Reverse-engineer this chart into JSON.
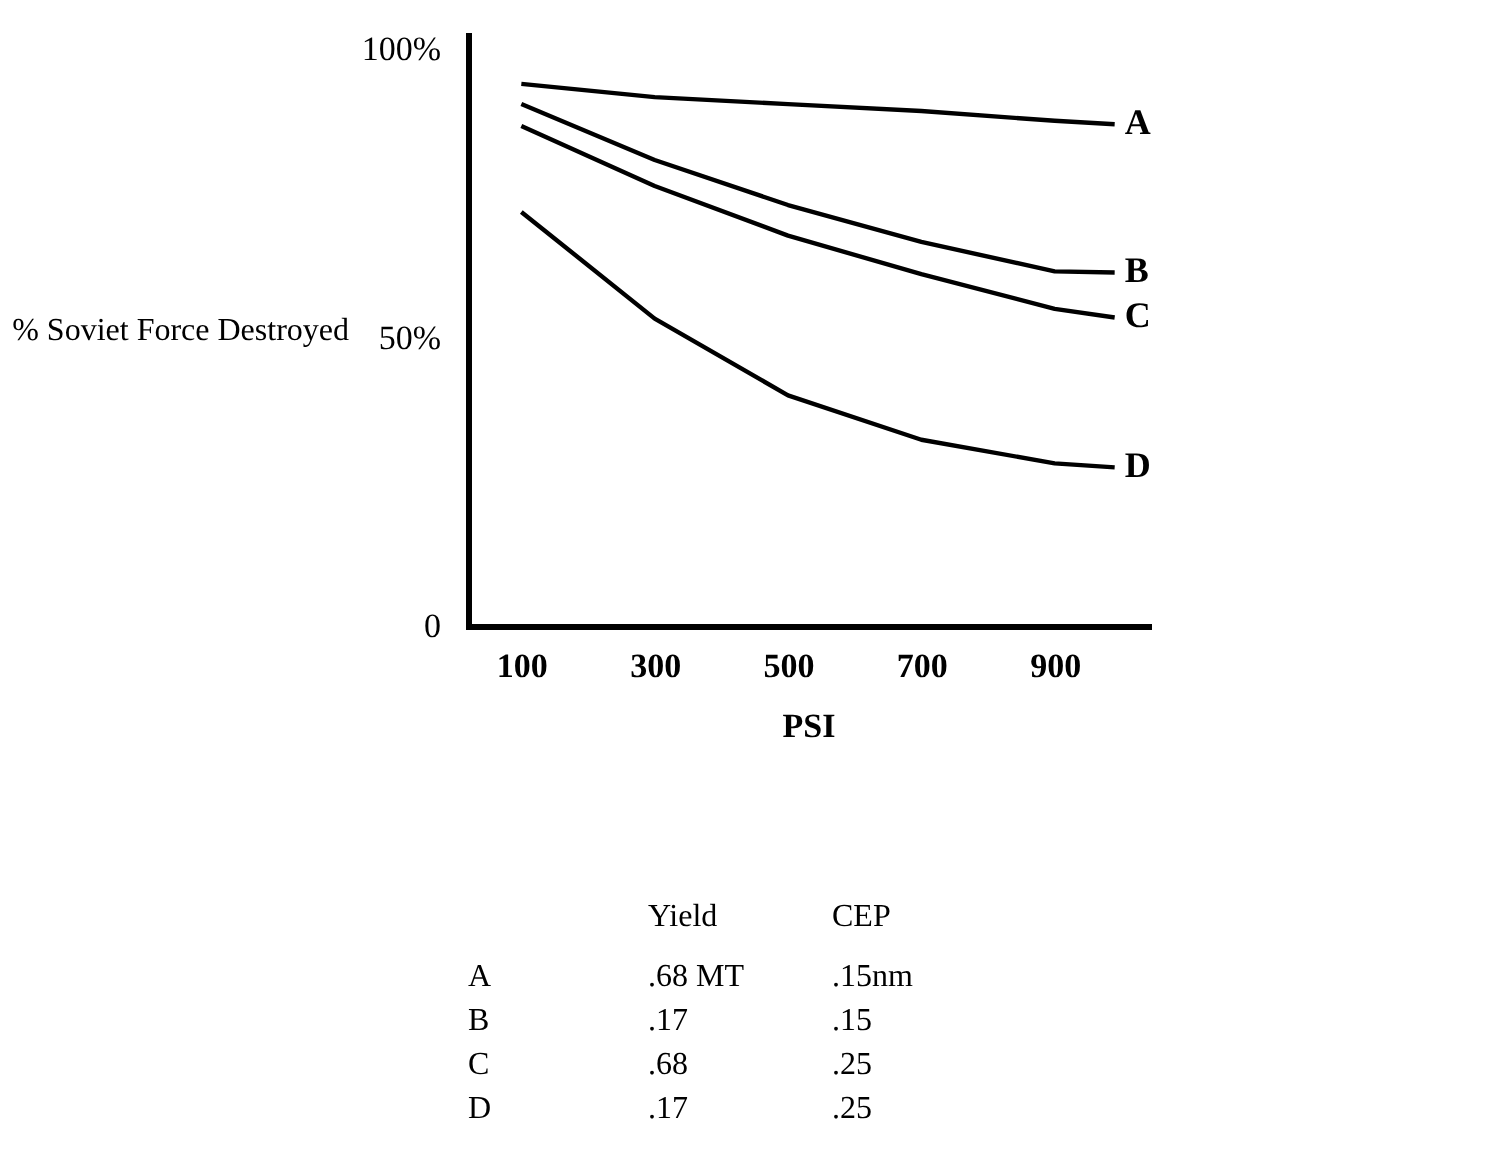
{
  "chart_data": {
    "type": "line",
    "xlabel": "PSI",
    "ylabel": "% Soviet Force Destroyed",
    "x": [
      100,
      300,
      500,
      700,
      900,
      990
    ],
    "series": [
      {
        "name": "A",
        "color": "#000000",
        "values": [
          94,
          91.7,
          90.5,
          89.3,
          87.6,
          87
        ]
      },
      {
        "name": "B",
        "color": "#000000",
        "values": [
          90.5,
          80.8,
          73,
          66.6,
          61.5,
          61.3
        ]
      },
      {
        "name": "C",
        "color": "#000000",
        "values": [
          86.7,
          76.3,
          67.7,
          61,
          55,
          53.5
        ]
      },
      {
        "name": "D",
        "color": "#000000",
        "values": [
          71.8,
          53.3,
          40,
          32.3,
          28.2,
          27.5
        ]
      }
    ],
    "xlim": [
      20,
      1040
    ],
    "xticks": [
      100,
      300,
      500,
      700,
      900
    ],
    "ylim": [
      0,
      103
    ],
    "yticks": [
      {
        "value": 0,
        "label": "0"
      },
      {
        "value": 50,
        "label": "50%"
      },
      {
        "value": 100,
        "label": "100%"
      }
    ],
    "grid": false,
    "marker": "none",
    "line_style": "solid",
    "annotations": [
      "Yield",
      "CEP",
      "A",
      ".68 MT",
      ".15nm",
      "B",
      ".17",
      ".15",
      "C",
      ".68",
      ".25",
      "D",
      ".17",
      ".25"
    ]
  }
}
